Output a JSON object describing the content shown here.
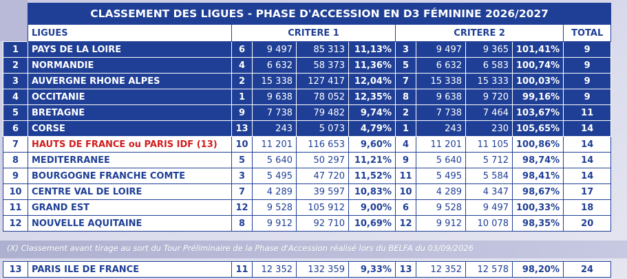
{
  "title": "CLASSEMENT DES LIGUES - PHASE D'ACCESSION EN D3 FÉMININE 2026/2027",
  "headers": {
    "ligues": "LIGUES",
    "critere1": "CRITERE 1",
    "critere2": "CRITERE 2",
    "total": "TOTAL"
  },
  "rows": [
    {
      "rank": "1",
      "name": "PAYS DE LA LOIRE",
      "c1_pos": "6",
      "c1_a": "9 497",
      "c1_b": "85 313",
      "c1_pct": "11,13%",
      "c2_pos": "3",
      "c2_a": "9 497",
      "c2_b": "9 365",
      "c2_pct": "101,41%",
      "total": "9"
    },
    {
      "rank": "2",
      "name": "NORMANDIE",
      "c1_pos": "4",
      "c1_a": "6 632",
      "c1_b": "58 373",
      "c1_pct": "11,36%",
      "c2_pos": "5",
      "c2_a": "6 632",
      "c2_b": "6 583",
      "c2_pct": "100,74%",
      "total": "9"
    },
    {
      "rank": "3",
      "name": "AUVERGNE RHONE ALPES",
      "c1_pos": "2",
      "c1_a": "15 338",
      "c1_b": "127 417",
      "c1_pct": "12,04%",
      "c2_pos": "7",
      "c2_a": "15 338",
      "c2_b": "15 333",
      "c2_pct": "100,03%",
      "total": "9"
    },
    {
      "rank": "4",
      "name": "OCCITANIE",
      "c1_pos": "1",
      "c1_a": "9 638",
      "c1_b": "78 052",
      "c1_pct": "12,35%",
      "c2_pos": "8",
      "c2_a": "9 638",
      "c2_b": "9 720",
      "c2_pct": "99,16%",
      "total": "9"
    },
    {
      "rank": "5",
      "name": "BRETAGNE",
      "c1_pos": "9",
      "c1_a": "7 738",
      "c1_b": "79 482",
      "c1_pct": "9,74%",
      "c2_pos": "2",
      "c2_a": "7 738",
      "c2_b": "7 464",
      "c2_pct": "103,67%",
      "total": "11"
    },
    {
      "rank": "6",
      "name": "CORSE",
      "c1_pos": "13",
      "c1_a": "243",
      "c1_b": "5 073",
      "c1_pct": "4,79%",
      "c2_pos": "1",
      "c2_a": "243",
      "c2_b": "230",
      "c2_pct": "105,65%",
      "total": "14"
    },
    {
      "rank": "7",
      "name": "HAUTS DE FRANCE ou PARIS IDF (13)",
      "c1_pos": "10",
      "c1_a": "11 201",
      "c1_b": "116 653",
      "c1_pct": "9,60%",
      "c2_pos": "4",
      "c2_a": "11 201",
      "c2_b": "11 105",
      "c2_pct": "100,86%",
      "total": "14"
    },
    {
      "rank": "8",
      "name": "MEDITERRANEE",
      "c1_pos": "5",
      "c1_a": "5 640",
      "c1_b": "50 297",
      "c1_pct": "11,21%",
      "c2_pos": "9",
      "c2_a": "5 640",
      "c2_b": "5 712",
      "c2_pct": "98,74%",
      "total": "14"
    },
    {
      "rank": "9",
      "name": "BOURGOGNE FRANCHE COMTE",
      "c1_pos": "3",
      "c1_a": "5 495",
      "c1_b": "47 720",
      "c1_pct": "11,52%",
      "c2_pos": "11",
      "c2_a": "5 495",
      "c2_b": "5 584",
      "c2_pct": "98,41%",
      "total": "14"
    },
    {
      "rank": "10",
      "name": "CENTRE VAL DE LOIRE",
      "c1_pos": "7",
      "c1_a": "4 289",
      "c1_b": "39 597",
      "c1_pct": "10,83%",
      "c2_pos": "10",
      "c2_a": "4 289",
      "c2_b": "4 347",
      "c2_pct": "98,67%",
      "total": "17"
    },
    {
      "rank": "11",
      "name": "GRAND EST",
      "c1_pos": "12",
      "c1_a": "9 528",
      "c1_b": "105 912",
      "c1_pct": "9,00%",
      "c2_pos": "6",
      "c2_a": "9 528",
      "c2_b": "9 497",
      "c2_pct": "100,33%",
      "total": "18"
    },
    {
      "rank": "12",
      "name": "NOUVELLE AQUITAINE",
      "c1_pos": "8",
      "c1_a": "9 912",
      "c1_b": "92 710",
      "c1_pct": "10,69%",
      "c2_pos": "12",
      "c2_a": "9 912",
      "c2_b": "10 078",
      "c2_pct": "98,35%",
      "total": "20"
    }
  ],
  "note": "(X) Classement avant tirage au sort du Tour Préliminaire de la Phase d'Accession réalisé lors du BELFA du 03/09/2026",
  "bottom_row": {
    "rank": "13",
    "name": "PARIS ILE DE FRANCE",
    "c1_pos": "11",
    "c1_a": "12 352",
    "c1_b": "132 359",
    "c1_pct": "9,33%",
    "c2_pos": "13",
    "c2_a": "12 352",
    "c2_b": "12 578",
    "c2_pct": "98,20%",
    "total": "24"
  },
  "colors": {
    "dark_blue": "#1f3f96",
    "red": "#d11c1c",
    "background": "#d3d4e8"
  }
}
